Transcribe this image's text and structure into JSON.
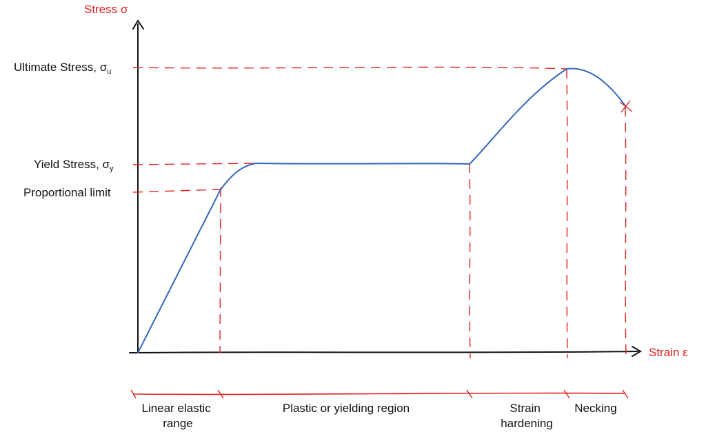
{
  "axes": {
    "y_label": "Stress σ",
    "x_label": "Strain ε"
  },
  "levels": {
    "ultimate": {
      "label": "Ultimate Stress, σ",
      "sub": "u"
    },
    "yield": {
      "label": "Yield Stress, σ",
      "sub": "y"
    },
    "proportional": {
      "label": "Proportional limit"
    }
  },
  "regions": {
    "linear_elastic": [
      "Linear elastic",
      "range"
    ],
    "plastic": "Plastic or yielding region",
    "strain_hardening": [
      "Strain",
      "hardening"
    ],
    "necking": "Necking"
  },
  "colors": {
    "curve": "#3366bb",
    "guides": "#e02020",
    "axes": "#111111"
  }
}
